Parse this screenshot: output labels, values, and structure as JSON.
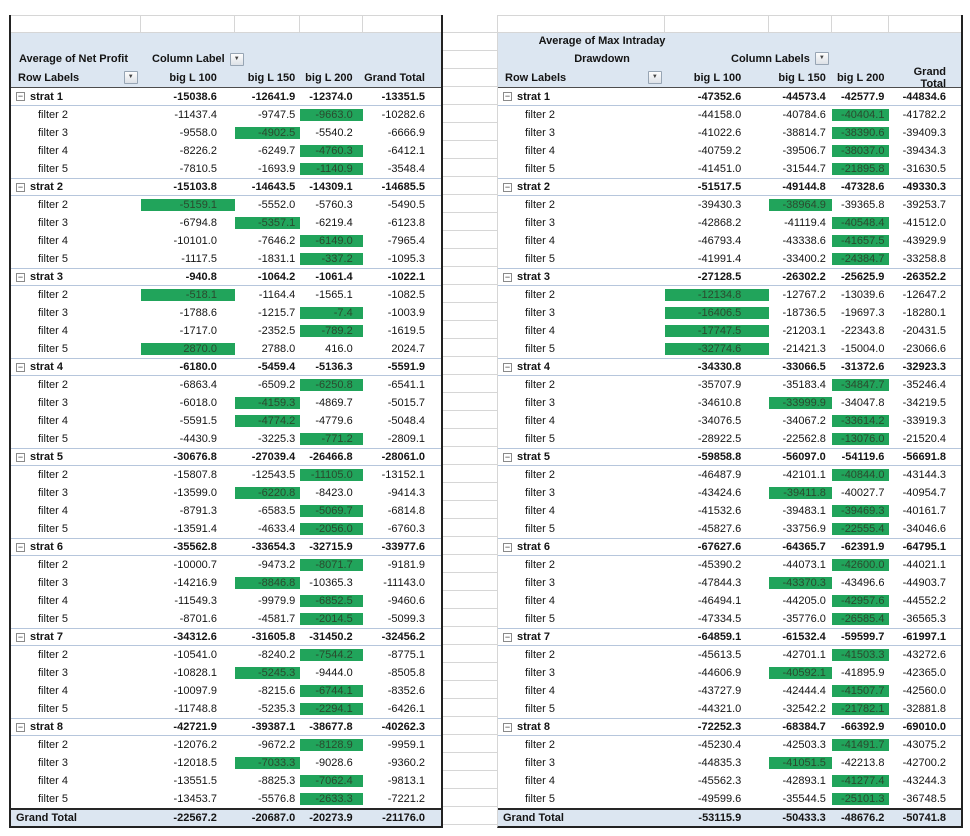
{
  "colors": {
    "header_fill": "#DCE6F1",
    "highlight_fill": "#21A45B",
    "highlight_text": "#2A4A2E",
    "grand_total_fill": "#DCE6F1"
  },
  "left_table": {
    "title_lines": [
      "Average of Net Profit"
    ],
    "column_label_header": "Column Label",
    "row_labels_header": "Row Labels",
    "columns": [
      "big L 100",
      "big L 150",
      "big L 200",
      "Grand Total"
    ],
    "dropdown_glyph": "▼",
    "collapse_glyph": "−",
    "groups": [
      {
        "name": "strat 1",
        "totals": [
          "-15038.6",
          "-12641.9",
          "-12374.0",
          "-13351.5"
        ],
        "rows": [
          {
            "label": "filter 2",
            "values": [
              "-11437.4",
              "-9747.5",
              "-9663.0",
              "-10282.6"
            ],
            "green": 2
          },
          {
            "label": "filter 3",
            "values": [
              "-9558.0",
              "-4902.5",
              "-5540.2",
              "-6666.9"
            ],
            "green": 1
          },
          {
            "label": "filter 4",
            "values": [
              "-8226.2",
              "-6249.7",
              "-4760.3",
              "-6412.1"
            ],
            "green": 2
          },
          {
            "label": "filter 5",
            "values": [
              "-7810.5",
              "-1693.9",
              "-1140.9",
              "-3548.4"
            ],
            "green": 2
          }
        ]
      },
      {
        "name": "strat 2",
        "totals": [
          "-15103.8",
          "-14643.5",
          "-14309.1",
          "-14685.5"
        ],
        "rows": [
          {
            "label": "filter 2",
            "values": [
              "-5159.1",
              "-5552.0",
              "-5760.3",
              "-5490.5"
            ],
            "green": 0
          },
          {
            "label": "filter 3",
            "values": [
              "-6794.8",
              "-5357.1",
              "-6219.4",
              "-6123.8"
            ],
            "green": 1
          },
          {
            "label": "filter 4",
            "values": [
              "-10101.0",
              "-7646.2",
              "-6149.0",
              "-7965.4"
            ],
            "green": 2
          },
          {
            "label": "filter 5",
            "values": [
              "-1117.5",
              "-1831.1",
              "-337.2",
              "-1095.3"
            ],
            "green": 2
          }
        ]
      },
      {
        "name": "strat 3",
        "totals": [
          "-940.8",
          "-1064.2",
          "-1061.4",
          "-1022.1"
        ],
        "rows": [
          {
            "label": "filter 2",
            "values": [
              "-518.1",
              "-1164.4",
              "-1565.1",
              "-1082.5"
            ],
            "green": 0
          },
          {
            "label": "filter 3",
            "values": [
              "-1788.6",
              "-1215.7",
              "-7.4",
              "-1003.9"
            ],
            "green": 2
          },
          {
            "label": "filter 4",
            "values": [
              "-1717.0",
              "-2352.5",
              "-789.2",
              "-1619.5"
            ],
            "green": 2
          },
          {
            "label": "filter 5",
            "values": [
              "2870.0",
              "2788.0",
              "416.0",
              "2024.7"
            ],
            "green": 0
          }
        ]
      },
      {
        "name": "strat 4",
        "totals": [
          "-6180.0",
          "-5459.4",
          "-5136.3",
          "-5591.9"
        ],
        "rows": [
          {
            "label": "filter 2",
            "values": [
              "-6863.4",
              "-6509.2",
              "-6250.8",
              "-6541.1"
            ],
            "green": 2
          },
          {
            "label": "filter 3",
            "values": [
              "-6018.0",
              "-4159.3",
              "-4869.7",
              "-5015.7"
            ],
            "green": 1
          },
          {
            "label": "filter 4",
            "values": [
              "-5591.5",
              "-4774.2",
              "-4779.6",
              "-5048.4"
            ],
            "green": 1
          },
          {
            "label": "filter 5",
            "values": [
              "-4430.9",
              "-3225.3",
              "-771.2",
              "-2809.1"
            ],
            "green": 2
          }
        ]
      },
      {
        "name": "strat 5",
        "totals": [
          "-30676.8",
          "-27039.4",
          "-26466.8",
          "-28061.0"
        ],
        "rows": [
          {
            "label": "filter 2",
            "values": [
              "-15807.8",
              "-12543.5",
              "-11105.0",
              "-13152.1"
            ],
            "green": 2
          },
          {
            "label": "filter 3",
            "values": [
              "-13599.0",
              "-6220.8",
              "-8423.0",
              "-9414.3"
            ],
            "green": 1
          },
          {
            "label": "filter 4",
            "values": [
              "-8791.3",
              "-6583.5",
              "-5069.7",
              "-6814.8"
            ],
            "green": 2
          },
          {
            "label": "filter 5",
            "values": [
              "-13591.4",
              "-4633.4",
              "-2056.0",
              "-6760.3"
            ],
            "green": 2
          }
        ]
      },
      {
        "name": "strat 6",
        "totals": [
          "-35562.8",
          "-33654.3",
          "-32715.9",
          "-33977.6"
        ],
        "rows": [
          {
            "label": "filter 2",
            "values": [
              "-10000.7",
              "-9473.2",
              "-8071.7",
              "-9181.9"
            ],
            "green": 2
          },
          {
            "label": "filter 3",
            "values": [
              "-14216.9",
              "-8846.8",
              "-10365.3",
              "-11143.0"
            ],
            "green": 1
          },
          {
            "label": "filter 4",
            "values": [
              "-11549.3",
              "-9979.9",
              "-6852.5",
              "-9460.6"
            ],
            "green": 2
          },
          {
            "label": "filter 5",
            "values": [
              "-8701.6",
              "-4581.7",
              "-2014.5",
              "-5099.3"
            ],
            "green": 2
          }
        ]
      },
      {
        "name": "strat 7",
        "totals": [
          "-34312.6",
          "-31605.8",
          "-31450.2",
          "-32456.2"
        ],
        "rows": [
          {
            "label": "filter 2",
            "values": [
              "-10541.0",
              "-8240.2",
              "-7544.2",
              "-8775.1"
            ],
            "green": 2
          },
          {
            "label": "filter 3",
            "values": [
              "-10828.1",
              "-5245.3",
              "-9444.0",
              "-8505.8"
            ],
            "green": 1
          },
          {
            "label": "filter 4",
            "values": [
              "-10097.9",
              "-8215.6",
              "-6744.1",
              "-8352.6"
            ],
            "green": 2
          },
          {
            "label": "filter 5",
            "values": [
              "-11748.8",
              "-5235.3",
              "-2294.1",
              "-6426.1"
            ],
            "green": 2
          }
        ]
      },
      {
        "name": "strat 8",
        "totals": [
          "-42721.9",
          "-39387.1",
          "-38677.8",
          "-40262.3"
        ],
        "rows": [
          {
            "label": "filter 2",
            "values": [
              "-12076.2",
              "-9672.2",
              "-8128.9",
              "-9959.1"
            ],
            "green": 2
          },
          {
            "label": "filter 3",
            "values": [
              "-12018.5",
              "-7033.3",
              "-9028.6",
              "-9360.2"
            ],
            "green": 1
          },
          {
            "label": "filter 4",
            "values": [
              "-13551.5",
              "-8825.3",
              "-7062.4",
              "-9813.1"
            ],
            "green": 2
          },
          {
            "label": "filter 5",
            "values": [
              "-13453.7",
              "-5576.8",
              "-2633.3",
              "-7221.2"
            ],
            "green": 2
          }
        ]
      }
    ],
    "grand_total": {
      "label": "Grand Total",
      "values": [
        "-22567.2",
        "-20687.0",
        "-20273.9",
        "-21176.0"
      ]
    }
  },
  "right_table": {
    "title_lines": [
      "Average of Max Intraday",
      "Drawdown"
    ],
    "column_label_header": "Column Labels",
    "row_labels_header": "Row Labels",
    "columns": [
      "big L 100",
      "big L 150",
      "big L 200",
      "Grand Total"
    ],
    "dropdown_glyph": "▼",
    "collapse_glyph": "−",
    "groups": [
      {
        "name": "strat 1",
        "totals": [
          "-47352.6",
          "-44573.4",
          "-42577.9",
          "-44834.6"
        ],
        "rows": [
          {
            "label": "filter 2",
            "values": [
              "-44158.0",
              "-40784.6",
              "-40404.1",
              "-41782.2"
            ],
            "green": 2
          },
          {
            "label": "filter 3",
            "values": [
              "-41022.6",
              "-38814.7",
              "-38390.6",
              "-39409.3"
            ],
            "green": 2
          },
          {
            "label": "filter 4",
            "values": [
              "-40759.2",
              "-39506.7",
              "-38037.0",
              "-39434.3"
            ],
            "green": 2
          },
          {
            "label": "filter 5",
            "values": [
              "-41451.0",
              "-31544.7",
              "-21895.8",
              "-31630.5"
            ],
            "green": 2
          }
        ]
      },
      {
        "name": "strat 2",
        "totals": [
          "-51517.5",
          "-49144.8",
          "-47328.6",
          "-49330.3"
        ],
        "rows": [
          {
            "label": "filter 2",
            "values": [
              "-39430.3",
              "-38964.9",
              "-39365.8",
              "-39253.7"
            ],
            "green": 1
          },
          {
            "label": "filter 3",
            "values": [
              "-42868.2",
              "-41119.4",
              "-40548.4",
              "-41512.0"
            ],
            "green": 2
          },
          {
            "label": "filter 4",
            "values": [
              "-46793.4",
              "-43338.6",
              "-41657.5",
              "-43929.9"
            ],
            "green": 2
          },
          {
            "label": "filter 5",
            "values": [
              "-41991.4",
              "-33400.2",
              "-24384.7",
              "-33258.8"
            ],
            "green": 2
          }
        ]
      },
      {
        "name": "strat 3",
        "totals": [
          "-27128.5",
          "-26302.2",
          "-25625.9",
          "-26352.2"
        ],
        "rows": [
          {
            "label": "filter 2",
            "values": [
              "-12134.8",
              "-12767.2",
              "-13039.6",
              "-12647.2"
            ],
            "green": 0
          },
          {
            "label": "filter 3",
            "values": [
              "-16406.5",
              "-18736.5",
              "-19697.3",
              "-18280.1"
            ],
            "green": 0
          },
          {
            "label": "filter 4",
            "values": [
              "-17747.5",
              "-21203.1",
              "-22343.8",
              "-20431.5"
            ],
            "green": 0
          },
          {
            "label": "filter 5",
            "values": [
              "-32774.6",
              "-21421.3",
              "-15004.0",
              "-23066.6"
            ],
            "green": 0
          }
        ]
      },
      {
        "name": "strat 4",
        "totals": [
          "-34330.8",
          "-33066.5",
          "-31372.6",
          "-32923.3"
        ],
        "rows": [
          {
            "label": "filter 2",
            "values": [
              "-35707.9",
              "-35183.4",
              "-34847.7",
              "-35246.4"
            ],
            "green": 2
          },
          {
            "label": "filter 3",
            "values": [
              "-34610.8",
              "-33999.9",
              "-34047.8",
              "-34219.5"
            ],
            "green": 1
          },
          {
            "label": "filter 4",
            "values": [
              "-34076.5",
              "-34067.2",
              "-33614.2",
              "-33919.3"
            ],
            "green": 2
          },
          {
            "label": "filter 5",
            "values": [
              "-28922.5",
              "-22562.8",
              "-13076.0",
              "-21520.4"
            ],
            "green": 2
          }
        ]
      },
      {
        "name": "strat 5",
        "totals": [
          "-59858.8",
          "-56097.0",
          "-54119.6",
          "-56691.8"
        ],
        "rows": [
          {
            "label": "filter 2",
            "values": [
              "-46487.9",
              "-42101.1",
              "-40844.0",
              "-43144.3"
            ],
            "green": 2
          },
          {
            "label": "filter 3",
            "values": [
              "-43424.6",
              "-39411.8",
              "-40027.7",
              "-40954.7"
            ],
            "green": 1
          },
          {
            "label": "filter 4",
            "values": [
              "-41532.6",
              "-39483.1",
              "-39469.3",
              "-40161.7"
            ],
            "green": 2
          },
          {
            "label": "filter 5",
            "values": [
              "-45827.6",
              "-33756.9",
              "-22555.4",
              "-34046.6"
            ],
            "green": 2
          }
        ]
      },
      {
        "name": "strat 6",
        "totals": [
          "-67627.6",
          "-64365.7",
          "-62391.9",
          "-64795.1"
        ],
        "rows": [
          {
            "label": "filter 2",
            "values": [
              "-45390.2",
              "-44073.1",
              "-42600.0",
              "-44021.1"
            ],
            "green": 2
          },
          {
            "label": "filter 3",
            "values": [
              "-47844.3",
              "-43370.3",
              "-43496.6",
              "-44903.7"
            ],
            "green": 1
          },
          {
            "label": "filter 4",
            "values": [
              "-46494.1",
              "-44205.0",
              "-42957.6",
              "-44552.2"
            ],
            "green": 2
          },
          {
            "label": "filter 5",
            "values": [
              "-47334.5",
              "-35776.0",
              "-26585.4",
              "-36565.3"
            ],
            "green": 2
          }
        ]
      },
      {
        "name": "strat 7",
        "totals": [
          "-64859.1",
          "-61532.4",
          "-59599.7",
          "-61997.1"
        ],
        "rows": [
          {
            "label": "filter 2",
            "values": [
              "-45613.5",
              "-42701.1",
              "-41503.3",
              "-43272.6"
            ],
            "green": 2
          },
          {
            "label": "filter 3",
            "values": [
              "-44606.9",
              "-40592.1",
              "-41895.9",
              "-42365.0"
            ],
            "green": 1
          },
          {
            "label": "filter 4",
            "values": [
              "-43727.9",
              "-42444.4",
              "-41507.7",
              "-42560.0"
            ],
            "green": 2
          },
          {
            "label": "filter 5",
            "values": [
              "-44321.0",
              "-32542.2",
              "-21782.1",
              "-32881.8"
            ],
            "green": 2
          }
        ]
      },
      {
        "name": "strat 8",
        "totals": [
          "-72252.3",
          "-68384.7",
          "-66392.9",
          "-69010.0"
        ],
        "rows": [
          {
            "label": "filter 2",
            "values": [
              "-45230.4",
              "-42503.3",
              "-41491.7",
              "-43075.2"
            ],
            "green": 2
          },
          {
            "label": "filter 3",
            "values": [
              "-44835.3",
              "-41051.5",
              "-42213.8",
              "-42700.2"
            ],
            "green": 1
          },
          {
            "label": "filter 4",
            "values": [
              "-45562.3",
              "-42893.1",
              "-41277.4",
              "-43244.3"
            ],
            "green": 2
          },
          {
            "label": "filter 5",
            "values": [
              "-49599.6",
              "-35544.5",
              "-25101.3",
              "-36748.5"
            ],
            "green": 2
          }
        ]
      }
    ],
    "grand_total": {
      "label": "Grand Total",
      "values": [
        "-53115.9",
        "-50433.3",
        "-48676.2",
        "-50741.8"
      ]
    }
  }
}
